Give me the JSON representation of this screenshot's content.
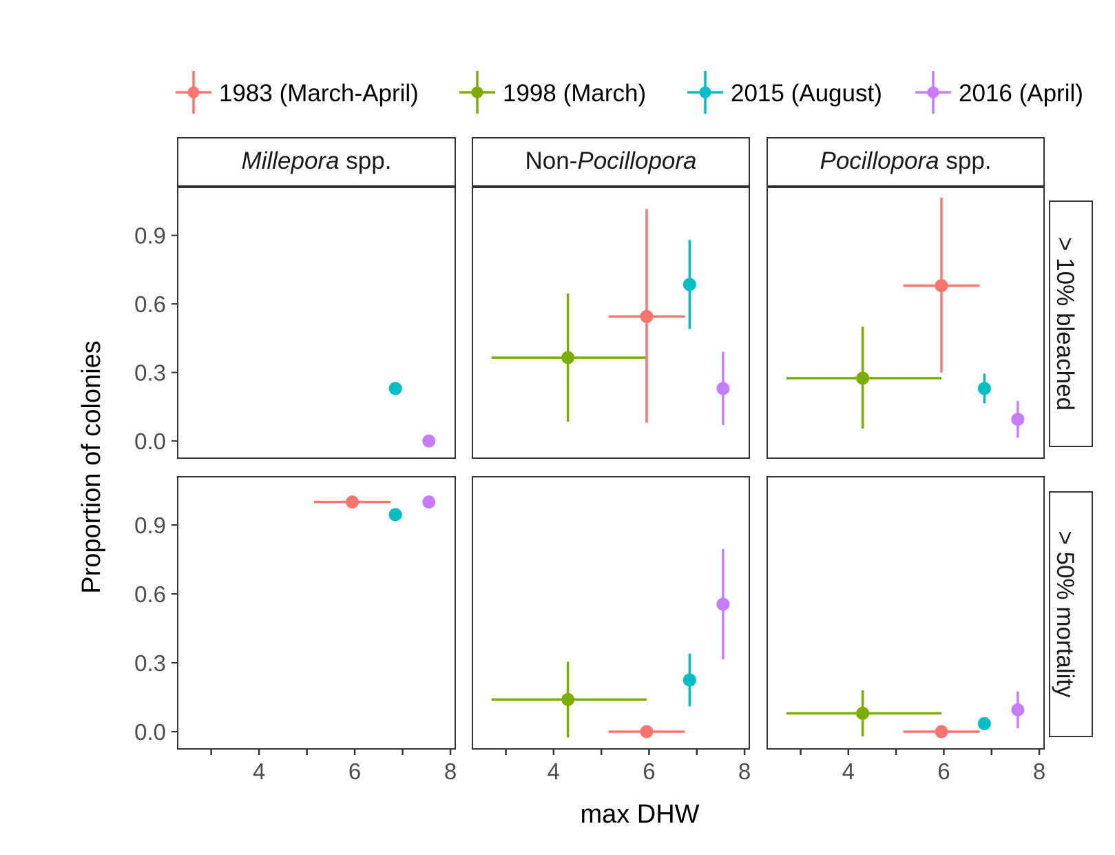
{
  "chart_data": {
    "type": "scatter",
    "subtype": "faceted scatter with horizontal and vertical error bars",
    "xlabel": "max DHW",
    "ylabel": "Proportion of colonies",
    "xlim": [
      2.3,
      8.1
    ],
    "ylim": [
      -0.075,
      1.11
    ],
    "x_ticks": [
      4,
      6,
      8
    ],
    "x_minor_ticks": [
      3,
      5,
      7
    ],
    "y_ticks": [
      0.0,
      0.3,
      0.6,
      0.9
    ],
    "y_tick_labels": [
      "0.0",
      "0.3",
      "0.6",
      "0.9"
    ],
    "grid": false,
    "legend_position": "top",
    "legend": [
      {
        "key": "1983",
        "label": "1983 (March-April)",
        "color": "#F8766D"
      },
      {
        "key": "1998",
        "label": "1998 (March)",
        "color": "#7CAE00"
      },
      {
        "key": "2015",
        "label": "2015 (August)",
        "color": "#00BFC4"
      },
      {
        "key": "2016",
        "label": "2016 (April)",
        "color": "#C77CFF"
      }
    ],
    "columns": [
      {
        "key": "millepora",
        "italic": "Millepora",
        "suffix": " spp.",
        "prefix": ""
      },
      {
        "key": "nonpoc",
        "italic": "Pocillopora",
        "suffix": "",
        "prefix": "Non-"
      },
      {
        "key": "poc",
        "italic": "Pocillopora",
        "suffix": " spp.",
        "prefix": ""
      }
    ],
    "rows": [
      {
        "key": "bleached",
        "label": "> 10% bleached"
      },
      {
        "key": "mortality",
        "label": "> 50% mortality"
      }
    ],
    "panels": [
      {
        "column": "millepora",
        "row": "bleached",
        "points": [
          {
            "series": "2015",
            "x": 6.85,
            "y": 0.23
          },
          {
            "series": "2016",
            "x": 7.55,
            "y": 0.0
          }
        ]
      },
      {
        "column": "nonpoc",
        "row": "bleached",
        "points": [
          {
            "series": "1998",
            "x": 4.3,
            "y": 0.365,
            "xmin": 2.7,
            "xmax": 5.95,
            "ymin": 0.085,
            "ymax": 0.645
          },
          {
            "series": "1983",
            "x": 5.95,
            "y": 0.545,
            "xmin": 5.15,
            "xmax": 6.75,
            "ymin": 0.08,
            "ymax": 1.015
          },
          {
            "series": "2015",
            "x": 6.85,
            "y": 0.685,
            "ymin": 0.49,
            "ymax": 0.88
          },
          {
            "series": "2016",
            "x": 7.55,
            "y": 0.23,
            "ymin": 0.07,
            "ymax": 0.39
          }
        ]
      },
      {
        "column": "poc",
        "row": "bleached",
        "points": [
          {
            "series": "1998",
            "x": 4.3,
            "y": 0.275,
            "xmin": 2.7,
            "xmax": 5.95,
            "ymin": 0.055,
            "ymax": 0.5
          },
          {
            "series": "1983",
            "x": 5.95,
            "y": 0.68,
            "xmin": 5.15,
            "xmax": 6.75,
            "ymin": 0.3,
            "ymax": 1.065
          },
          {
            "series": "2015",
            "x": 6.85,
            "y": 0.23,
            "ymin": 0.165,
            "ymax": 0.295
          },
          {
            "series": "2016",
            "x": 7.55,
            "y": 0.095,
            "ymin": 0.015,
            "ymax": 0.175
          }
        ]
      },
      {
        "column": "millepora",
        "row": "mortality",
        "points": [
          {
            "series": "1983",
            "x": 5.95,
            "y": 1.0,
            "xmin": 5.15,
            "xmax": 6.75
          },
          {
            "series": "2015",
            "x": 6.85,
            "y": 0.945
          },
          {
            "series": "2016",
            "x": 7.55,
            "y": 1.0
          }
        ]
      },
      {
        "column": "nonpoc",
        "row": "mortality",
        "points": [
          {
            "series": "1998",
            "x": 4.3,
            "y": 0.14,
            "xmin": 2.7,
            "xmax": 5.95,
            "ymin": -0.025,
            "ymax": 0.305
          },
          {
            "series": "1983",
            "x": 5.95,
            "y": 0.0,
            "xmin": 5.15,
            "xmax": 6.75
          },
          {
            "series": "2015",
            "x": 6.85,
            "y": 0.225,
            "ymin": 0.11,
            "ymax": 0.34
          },
          {
            "series": "2016",
            "x": 7.55,
            "y": 0.555,
            "ymin": 0.315,
            "ymax": 0.795
          }
        ]
      },
      {
        "column": "poc",
        "row": "mortality",
        "points": [
          {
            "series": "1998",
            "x": 4.3,
            "y": 0.08,
            "xmin": 2.7,
            "xmax": 5.95,
            "ymin": -0.02,
            "ymax": 0.18
          },
          {
            "series": "1983",
            "x": 5.95,
            "y": 0.0,
            "xmin": 5.15,
            "xmax": 6.75
          },
          {
            "series": "2015",
            "x": 6.85,
            "y": 0.035,
            "ymin": 0.015,
            "ymax": 0.06
          },
          {
            "series": "2016",
            "x": 7.55,
            "y": 0.095,
            "ymin": 0.015,
            "ymax": 0.175
          }
        ]
      }
    ]
  }
}
